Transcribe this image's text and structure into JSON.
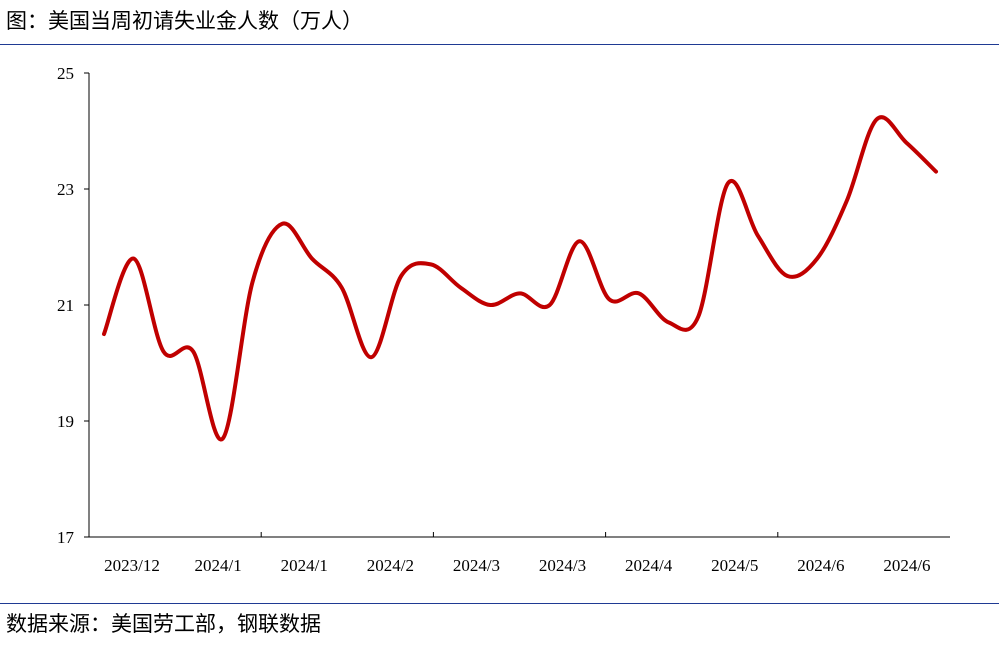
{
  "header": {
    "title": "图：美国当周初请失业金人数（万人）"
  },
  "footer": {
    "source": "数据来源：美国劳工部，钢联数据"
  },
  "colors": {
    "line": "#c00000",
    "rule": "#1f3a93",
    "axis": "#000000"
  },
  "chart_data": {
    "type": "line",
    "title": "",
    "xlabel": "",
    "ylabel": "",
    "ylim": [
      17,
      25
    ],
    "yticks": [
      17,
      19,
      21,
      23,
      25
    ],
    "xtick_labels": [
      "2023/12",
      "2024/1",
      "2024/1",
      "2024/2",
      "2024/3",
      "2024/3",
      "2024/4",
      "2024/5",
      "2024/6",
      "2024/6"
    ],
    "grid": false,
    "legend": "none",
    "series": [
      {
        "values": [
          20.5,
          21.8,
          20.2,
          20.2,
          18.7,
          21.4,
          22.4,
          21.8,
          21.3,
          20.1,
          21.5,
          21.7,
          21.3,
          21.0,
          21.2,
          21.0,
          22.1,
          21.1,
          21.2,
          20.7,
          20.8,
          23.1,
          22.2,
          21.5,
          21.8,
          22.8,
          24.2,
          23.8,
          23.3
        ]
      }
    ]
  }
}
